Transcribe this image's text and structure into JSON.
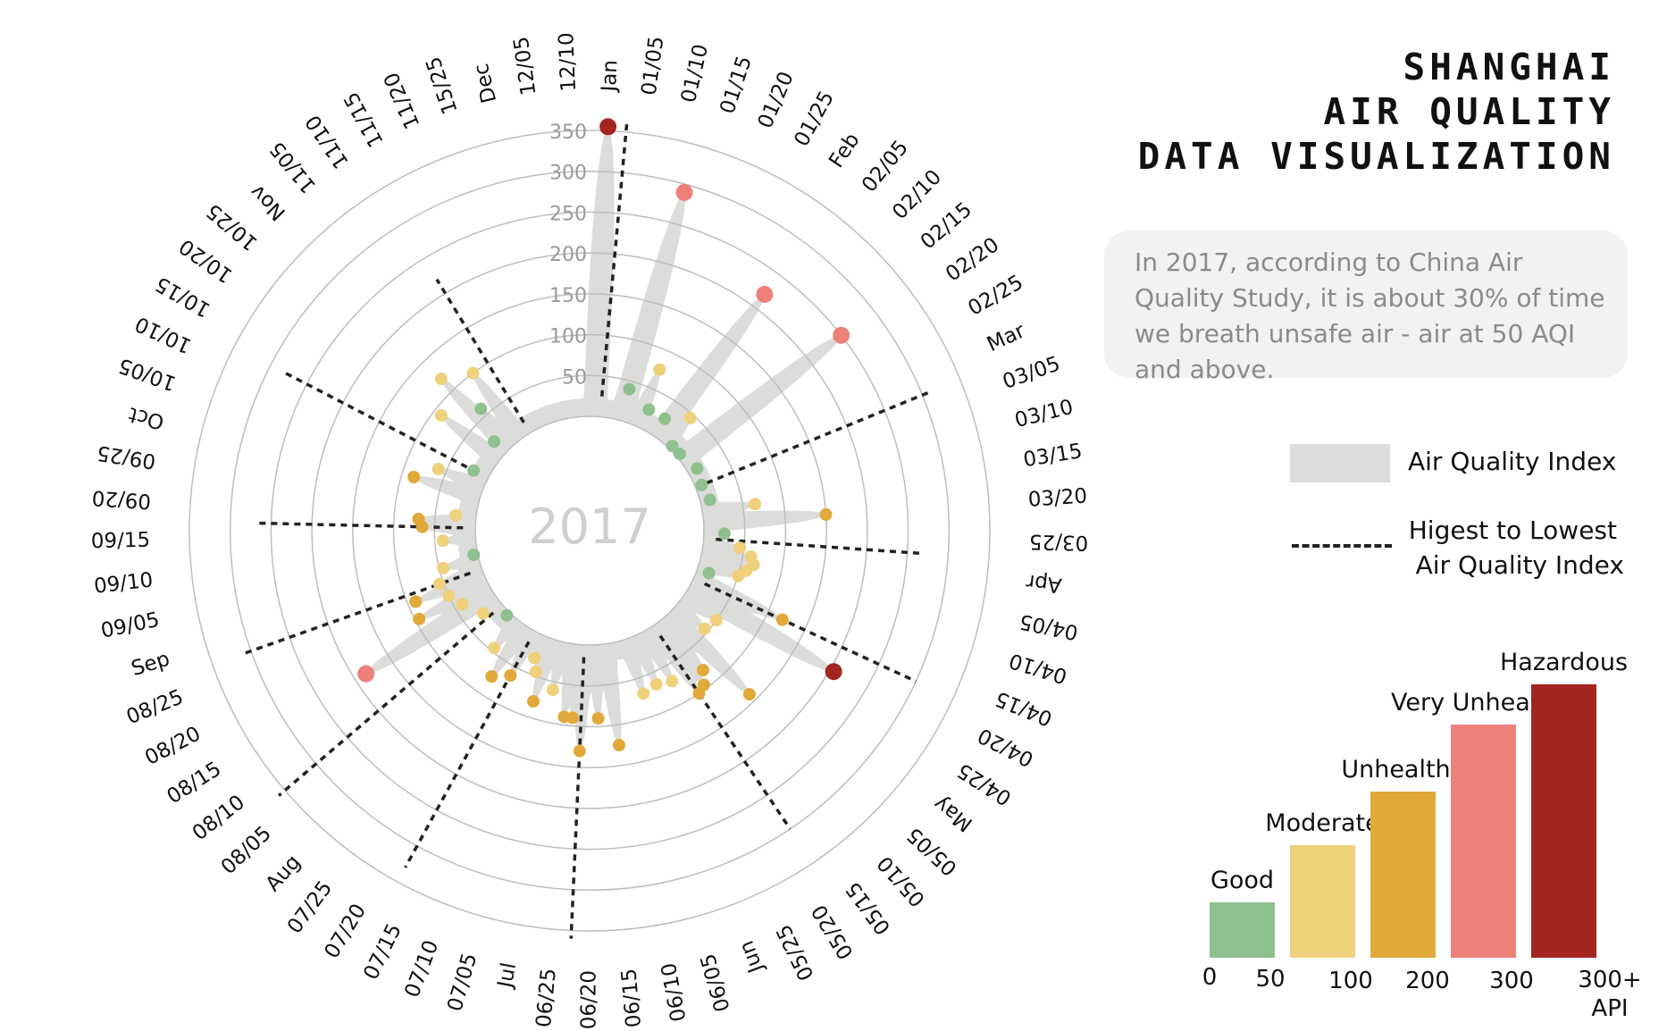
{
  "title_lines": [
    "SHANGHAI",
    "AIR QUALITY",
    "DATA VISUALIZATION"
  ],
  "note_text": "In 2017, according to China Air Quality Study, it is about 30% of time we breath unsafe air - air at 50 AQI and above.",
  "legend": {
    "area_label": "Air Quality Index",
    "dash_label_line1": "Higest to Lowest",
    "dash_label_line2": "Air Quality Index",
    "area_color": "#dcdcda"
  },
  "categories": [
    {
      "name": "Good",
      "color": "#8fc08f"
    },
    {
      "name": "Moderate",
      "color": "#efd07b"
    },
    {
      "name": "Unhealthy",
      "color": "#e0a93a"
    },
    {
      "name": "Very Unhealthy",
      "color": "#ee807a"
    },
    {
      "name": "Hazardous",
      "color": "#a3251f"
    }
  ],
  "scale_ticks": [
    "0",
    "50",
    "100",
    "200",
    "300",
    "300+",
    "API"
  ],
  "chart_data": {
    "type": "radial-scatter",
    "center_label": "2017",
    "radial_ticks": [
      50,
      100,
      150,
      200,
      250,
      300,
      350
    ],
    "radial_range": [
      0,
      350
    ],
    "grid": true,
    "date_labels": [
      "Jan",
      "01/05",
      "01/10",
      "01/15",
      "01/20",
      "01/25",
      "Feb",
      "02/05",
      "02/10",
      "02/15",
      "02/20",
      "02/25",
      "Mar",
      "03/05",
      "03/10",
      "03/15",
      "03/20",
      "03/25",
      "Apr",
      "04/05",
      "04/10",
      "04/15",
      "04/20",
      "04/25",
      "May",
      "05/05",
      "05/10",
      "05/15",
      "05/20",
      "05/25",
      "Jun",
      "06/05",
      "06/10",
      "06/15",
      "06/20",
      "06/25",
      "Jul",
      "07/05",
      "07/10",
      "07/15",
      "07/20",
      "07/25",
      "Aug",
      "08/05",
      "08/10",
      "08/15",
      "08/20",
      "08/25",
      "Sep",
      "09/05",
      "09/10",
      "09/15",
      "09/20",
      "09/25",
      "Oct",
      "10/05",
      "10/10",
      "10/15",
      "10/20",
      "10/25",
      "Nov",
      "11/05",
      "11/10",
      "11/15",
      "11/20",
      "15/25",
      "Dec",
      "12/05",
      "12/10"
    ],
    "points": [
      {
        "t": 0.5,
        "v": 355,
        "cat": "Hazardous"
      },
      {
        "t": 3,
        "v": 290,
        "cat": "Very Unhealthy"
      },
      {
        "t": 3,
        "v": 40,
        "cat": "Good"
      },
      {
        "t": 4.5,
        "v": 75,
        "cat": "Moderate"
      },
      {
        "t": 5,
        "v": 25,
        "cat": "Good"
      },
      {
        "t": 6.5,
        "v": 25,
        "cat": "Good"
      },
      {
        "t": 7,
        "v": 220,
        "cat": "Very Unhealthy"
      },
      {
        "t": 8,
        "v": 45,
        "cat": "Moderate"
      },
      {
        "t": 8.5,
        "v": 5,
        "cat": "Good"
      },
      {
        "t": 9.5,
        "v": 5,
        "cat": "Good"
      },
      {
        "t": 10,
        "v": 250,
        "cat": "Very Unhealthy"
      },
      {
        "t": 11.5,
        "v": 12,
        "cat": "Good"
      },
      {
        "t": 13,
        "v": 8,
        "cat": "Good"
      },
      {
        "t": 14.5,
        "v": 12,
        "cat": "Good"
      },
      {
        "t": 15.5,
        "v": 65,
        "cat": "Moderate"
      },
      {
        "t": 16.5,
        "v": 150,
        "cat": "Unhealthy"
      },
      {
        "t": 17.5,
        "v": 25,
        "cat": "Good"
      },
      {
        "t": 18.5,
        "v": 45,
        "cat": "Moderate"
      },
      {
        "t": 19,
        "v": 60,
        "cat": "Moderate"
      },
      {
        "t": 19.5,
        "v": 65,
        "cat": "Moderate"
      },
      {
        "t": 20,
        "v": 58,
        "cat": "Moderate"
      },
      {
        "t": 20.5,
        "v": 50,
        "cat": "Moderate"
      },
      {
        "t": 21,
        "v": 15,
        "cat": "Good"
      },
      {
        "t": 22,
        "v": 120,
        "cat": "Unhealthy"
      },
      {
        "t": 23,
        "v": 205,
        "cat": "Hazardous"
      },
      {
        "t": 24,
        "v": 50,
        "cat": "Moderate"
      },
      {
        "t": 25,
        "v": 45,
        "cat": "Moderate"
      },
      {
        "t": 26,
        "v": 140,
        "cat": "Unhealthy"
      },
      {
        "t": 27,
        "v": 80,
        "cat": "Unhealthy"
      },
      {
        "t": 27.5,
        "v": 95,
        "cat": "Unhealthy"
      },
      {
        "t": 28,
        "v": 100,
        "cat": "Unhealthy"
      },
      {
        "t": 29,
        "v": 70,
        "cat": "Moderate"
      },
      {
        "t": 30,
        "v": 65,
        "cat": "Moderate"
      },
      {
        "t": 31,
        "v": 70,
        "cat": "Moderate"
      },
      {
        "t": 33,
        "v": 125,
        "cat": "Unhealthy"
      },
      {
        "t": 34,
        "v": 90,
        "cat": "Unhealthy"
      },
      {
        "t": 35,
        "v": 130,
        "cat": "Unhealthy"
      },
      {
        "t": 35.5,
        "v": 90,
        "cat": "Unhealthy"
      },
      {
        "t": 36,
        "v": 90,
        "cat": "Unhealthy"
      },
      {
        "t": 37,
        "v": 60,
        "cat": "Moderate"
      },
      {
        "t": 38,
        "v": 80,
        "cat": "Unhealthy"
      },
      {
        "t": 38.5,
        "v": 45,
        "cat": "Moderate"
      },
      {
        "t": 39,
        "v": 30,
        "cat": "Moderate"
      },
      {
        "t": 40,
        "v": 62,
        "cat": "Unhealthy"
      },
      {
        "t": 41,
        "v": 75,
        "cat": "Unhealthy"
      },
      {
        "t": 42,
        "v": 45,
        "cat": "Moderate"
      },
      {
        "t": 43,
        "v": 5,
        "cat": "Good"
      },
      {
        "t": 44.5,
        "v": 25,
        "cat": "Moderate"
      },
      {
        "t": 45.5,
        "v": 185,
        "cat": "Very Unhealthy"
      },
      {
        "t": 46,
        "v": 40,
        "cat": "Moderate"
      },
      {
        "t": 46.5,
        "v": 95,
        "cat": "Unhealthy"
      },
      {
        "t": 47,
        "v": 50,
        "cat": "Moderate"
      },
      {
        "t": 47.5,
        "v": 90,
        "cat": "Unhealthy"
      },
      {
        "t": 48,
        "v": 55,
        "cat": "Moderate"
      },
      {
        "t": 49,
        "v": 45,
        "cat": "Moderate"
      },
      {
        "t": 49.5,
        "v": 5,
        "cat": "Good"
      },
      {
        "t": 51,
        "v": 40,
        "cat": "Moderate"
      },
      {
        "t": 52,
        "v": 65,
        "cat": "Unhealthy"
      },
      {
        "t": 52.5,
        "v": 70,
        "cat": "Unhealthy"
      },
      {
        "t": 53,
        "v": 25,
        "cat": "Moderate"
      },
      {
        "t": 55,
        "v": 85,
        "cat": "Unhealthy"
      },
      {
        "t": 56,
        "v": 60,
        "cat": "Moderate"
      },
      {
        "t": 57,
        "v": 20,
        "cat": "Good"
      },
      {
        "t": 59,
        "v": 90,
        "cat": "Moderate"
      },
      {
        "t": 60,
        "v": 20,
        "cat": "Good"
      },
      {
        "t": 60.5,
        "v": 120,
        "cat": "Moderate"
      },
      {
        "t": 61,
        "v": 60,
        "cat": "Good"
      },
      {
        "t": 62,
        "v": 100,
        "cat": "Moderate"
      }
    ],
    "dividers": [
      {
        "t": 1,
        "r0": 25,
        "r1": 360
      },
      {
        "t": 13,
        "r0": 15,
        "r1": 310
      },
      {
        "t": 18,
        "r0": 15,
        "r1": 270
      },
      {
        "t": 22,
        "r0": 15,
        "r1": 300
      },
      {
        "t": 28,
        "r0": 15,
        "r1": 300
      },
      {
        "t": 35,
        "r0": 15,
        "r1": 360
      },
      {
        "t": 40,
        "r0": 15,
        "r1": 330
      },
      {
        "t": 44,
        "r0": 15,
        "r1": 360
      },
      {
        "t": 48,
        "r0": 15,
        "r1": 310
      },
      {
        "t": 52,
        "r0": 15,
        "r1": 270
      },
      {
        "t": 57,
        "r0": 15,
        "r1": 280
      },
      {
        "t": 63,
        "r0": 15,
        "r1": 220
      }
    ]
  }
}
